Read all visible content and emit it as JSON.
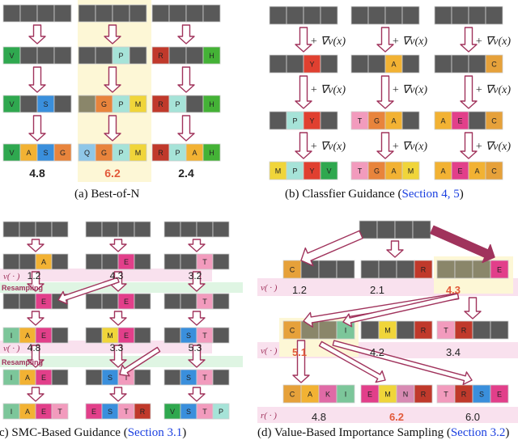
{
  "colors": {
    "gray": "#595959",
    "grayLight": "#bdbdbd",
    "dim": "#8a866a",
    "arrow": "#a0335c",
    "arrowFill": "#ffffff",
    "score": "#222222",
    "scoreRed": "#e25a3a",
    "vpink": "#f9e1ee",
    "resampleGreen": "#dff5e3",
    "highlightYellow": "#fdf7d6",
    "refBlue": "#1a3fe0"
  },
  "residue_colors": {
    "V": "#2fa84f",
    "P": "#a6e3d8",
    "R": "#c0392b",
    "H": "#44b236",
    "S": "#3a8fdc",
    "G": "#e8843c",
    "M": "#f0d53a",
    "A": "#f2b233",
    "Q": "#8fc7e8",
    "Y": "#e04030",
    "T": "#f29bbd",
    "E": "#e23f8a",
    "C": "#e6a13a",
    "I": "#7cc69a",
    "K": "#e06aa6",
    "N": "#d88ab3"
  },
  "panel_a": {
    "rows": [
      [
        [
          "",
          "",
          "",
          ""
        ],
        [
          "",
          "",
          "",
          ""
        ],
        [
          "",
          "",
          "",
          ""
        ]
      ],
      [
        [
          "V",
          "",
          "",
          ""
        ],
        [
          "",
          "",
          "P",
          ""
        ],
        [
          "R",
          "",
          "",
          "H"
        ]
      ],
      [
        [
          "V",
          "",
          "S",
          ""
        ],
        [
          "",
          "G",
          "P",
          "M"
        ],
        [
          "R",
          "P",
          "",
          "H"
        ]
      ],
      [
        [
          "V",
          "A",
          "S",
          "G"
        ],
        [
          "Q",
          "G",
          "P",
          "M"
        ],
        [
          "R",
          "P",
          "A",
          "H"
        ]
      ]
    ],
    "scores": [
      "4.8",
      "6.2",
      "2.4"
    ],
    "caption": "(a) Best-of-N"
  },
  "panel_b": {
    "rows": [
      [
        [
          "",
          "",
          "",
          ""
        ],
        [
          "",
          "",
          "",
          ""
        ],
        [
          "",
          "",
          "",
          ""
        ]
      ],
      [
        [
          "",
          "",
          "Y",
          ""
        ],
        [
          "",
          "",
          "A",
          ""
        ],
        [
          "",
          "",
          "",
          "C"
        ]
      ],
      [
        [
          "",
          "P",
          "Y",
          ""
        ],
        [
          "T",
          "G",
          "A",
          ""
        ],
        [
          "A",
          "E",
          "",
          "C"
        ]
      ],
      [
        [
          "M",
          "P",
          "Y",
          "V"
        ],
        [
          "T",
          "G",
          "A",
          "M"
        ],
        [
          "A",
          "E",
          "A",
          "C"
        ]
      ]
    ],
    "guidance_label": "+ ∇v(x)",
    "caption_main": "(b) Classfier Guidance (",
    "caption_ref": "Section 4, 5",
    "caption_end": ")"
  },
  "panel_c": {
    "rows": [
      [
        [
          "",
          "",
          "",
          ""
        ],
        [
          "",
          "",
          "",
          ""
        ],
        [
          "",
          "",
          "",
          ""
        ]
      ],
      [
        [
          "",
          "",
          "A",
          ""
        ],
        [
          "",
          "",
          "E",
          ""
        ],
        [
          "",
          "",
          "T",
          ""
        ]
      ],
      [
        [
          "",
          "",
          "E",
          ""
        ],
        [
          "",
          "",
          "E",
          ""
        ],
        [
          "",
          "",
          "T",
          ""
        ]
      ],
      [
        [
          "I",
          "A",
          "E",
          ""
        ],
        [
          "",
          "M",
          "E",
          ""
        ],
        [
          "",
          "S",
          "T",
          ""
        ]
      ],
      [
        [
          "I",
          "A",
          "E",
          ""
        ],
        [
          "",
          "S",
          "T",
          ""
        ],
        [
          "",
          "S",
          "T",
          ""
        ]
      ],
      [
        [
          "I",
          "A",
          "E",
          "T"
        ],
        [
          "E",
          "S",
          "T",
          "R"
        ],
        [
          "V",
          "S",
          "T",
          "P"
        ]
      ]
    ],
    "v_label": "v( · )",
    "values_row1": [
      "1.2",
      "4.3",
      "3.2"
    ],
    "values_row2": [
      "4.8",
      "3.3",
      "5.3"
    ],
    "resampling": "Resampling",
    "caption_main": "(c) SMC-Based Guidance (",
    "caption_ref": "Section 3.1",
    "caption_end": ")"
  },
  "panel_d": {
    "top": [
      "",
      "",
      "",
      ""
    ],
    "row1": [
      [
        "C",
        "",
        "",
        ""
      ],
      [
        "",
        "",
        "",
        "R"
      ],
      [
        "",
        "",
        "",
        "E"
      ]
    ],
    "row1_values": [
      "1.2",
      "2.1",
      "4.3"
    ],
    "row2": [
      [
        "C",
        "",
        "",
        "I"
      ],
      [
        "",
        "M",
        "",
        "R"
      ],
      [
        "T",
        "R",
        "",
        ""
      ]
    ],
    "row2_values": [
      "5.1",
      "4.2",
      "3.4"
    ],
    "row3": [
      [
        "C",
        "A",
        "K",
        "I"
      ],
      [
        "E",
        "M",
        "N",
        "R"
      ],
      [
        "T",
        "R",
        "S",
        "E"
      ]
    ],
    "row3_values": [
      "4.8",
      "6.2",
      "6.0"
    ],
    "v_label": "v( · )",
    "r_label": "r( · )",
    "caption_main": "(d) Value-Based Importance Sampling (",
    "caption_ref": "Section 3.2",
    "caption_end": ")"
  }
}
